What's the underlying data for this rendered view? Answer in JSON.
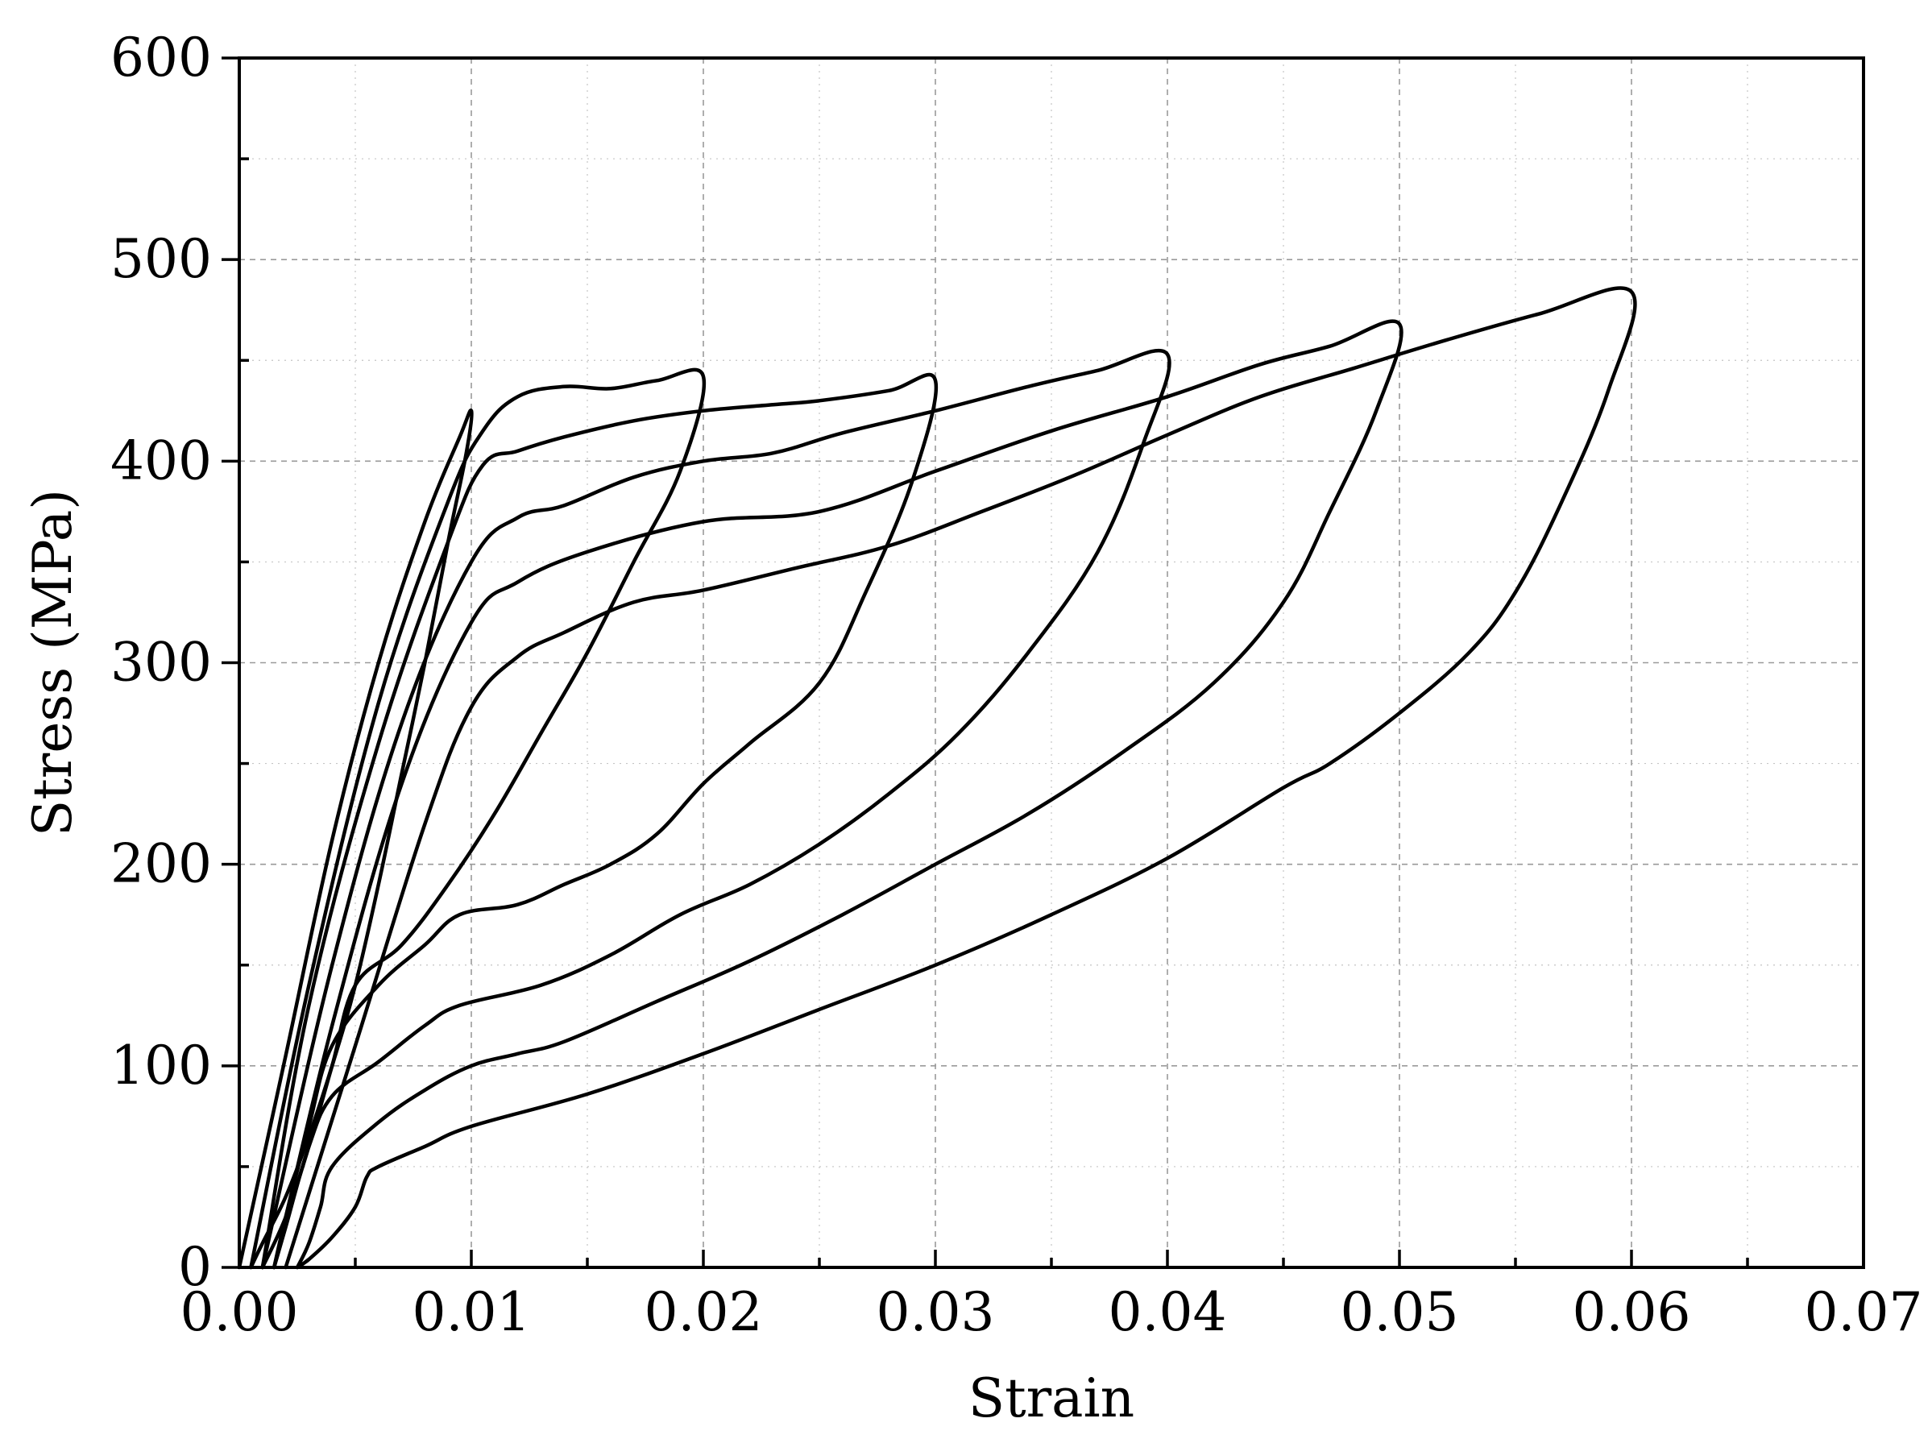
{
  "chart_data": {
    "type": "line",
    "xlabel": "Strain",
    "ylabel": "Stress (MPa)",
    "xlim": [
      0.0,
      0.07
    ],
    "ylim": [
      0,
      600
    ],
    "x_ticks": [
      "0.00",
      "0.01",
      "0.02",
      "0.03",
      "0.04",
      "0.05",
      "0.06",
      "0.07"
    ],
    "y_ticks": [
      "0",
      "100",
      "200",
      "300",
      "400",
      "500",
      "600"
    ],
    "x_minor_step": 0.005,
    "y_minor_step": 50,
    "grid": true,
    "series": [
      {
        "color": "#000000",
        "x": [
          0.0,
          0.002,
          0.004,
          0.006,
          0.008,
          0.0095,
          0.01,
          0.0098,
          0.009,
          0.008,
          0.007,
          0.006,
          0.005,
          0.004,
          0.003,
          0.002,
          0.001,
          0.0005
        ],
        "y": [
          0,
          105,
          212,
          300,
          370,
          412,
          425,
          405,
          360,
          300,
          245,
          190,
          140,
          100,
          65,
          35,
          12,
          0
        ]
      },
      {
        "color": "#000000",
        "x": [
          0.0005,
          0.003,
          0.006,
          0.009,
          0.0105,
          0.012,
          0.014,
          0.016,
          0.018,
          0.02,
          0.019,
          0.017,
          0.015,
          0.013,
          0.011,
          0.009,
          0.007,
          0.005,
          0.004,
          0.003,
          0.002,
          0.001
        ],
        "y": [
          0,
          140,
          280,
          380,
          415,
          432,
          437,
          436,
          440,
          442,
          395,
          350,
          305,
          265,
          225,
          190,
          160,
          140,
          100,
          60,
          25,
          0
        ]
      },
      {
        "color": "#000000",
        "x": [
          0.001,
          0.003,
          0.006,
          0.009,
          0.0105,
          0.012,
          0.014,
          0.017,
          0.02,
          0.023,
          0.025,
          0.028,
          0.03,
          0.029,
          0.027,
          0.025,
          0.022,
          0.02,
          0.018,
          0.016,
          0.014,
          0.012,
          0.0095,
          0.008,
          0.006,
          0.004,
          0.003,
          0.002,
          0.0015
        ],
        "y": [
          0,
          130,
          260,
          360,
          398,
          405,
          412,
          420,
          425,
          428,
          430,
          435,
          440,
          390,
          335,
          290,
          260,
          240,
          215,
          200,
          190,
          180,
          175,
          160,
          140,
          110,
          70,
          25,
          0
        ]
      },
      {
        "color": "#000000",
        "x": [
          0.001,
          0.004,
          0.007,
          0.01,
          0.012,
          0.014,
          0.017,
          0.02,
          0.023,
          0.026,
          0.03,
          0.034,
          0.037,
          0.04,
          0.039,
          0.037,
          0.034,
          0.031,
          0.028,
          0.025,
          0.022,
          0.019,
          0.016,
          0.013,
          0.0095,
          0.008,
          0.006,
          0.004,
          0.003,
          0.002,
          0.0015
        ],
        "y": [
          0,
          150,
          270,
          350,
          372,
          378,
          392,
          400,
          404,
          414,
          425,
          437,
          445,
          453,
          410,
          355,
          305,
          265,
          235,
          210,
          190,
          175,
          155,
          140,
          130,
          120,
          102,
          85,
          60,
          20,
          0
        ]
      },
      {
        "color": "#000000",
        "x": [
          0.0015,
          0.004,
          0.007,
          0.01,
          0.012,
          0.015,
          0.02,
          0.025,
          0.03,
          0.035,
          0.04,
          0.044,
          0.047,
          0.05,
          0.049,
          0.047,
          0.045,
          0.042,
          0.038,
          0.034,
          0.03,
          0.026,
          0.022,
          0.018,
          0.014,
          0.012,
          0.01,
          0.008,
          0.006,
          0.004,
          0.0035,
          0.003,
          0.0025
        ],
        "y": [
          0,
          120,
          240,
          320,
          340,
          355,
          370,
          375,
          395,
          415,
          432,
          448,
          457,
          468,
          425,
          375,
          330,
          290,
          255,
          225,
          200,
          175,
          152,
          132,
          112,
          106,
          100,
          88,
          72,
          50,
          30,
          12,
          0
        ]
      },
      {
        "color": "#000000",
        "x": [
          0.002,
          0.005,
          0.008,
          0.01,
          0.012,
          0.014,
          0.017,
          0.02,
          0.024,
          0.028,
          0.032,
          0.036,
          0.04,
          0.044,
          0.048,
          0.052,
          0.056,
          0.06,
          0.059,
          0.057,
          0.055,
          0.053,
          0.05,
          0.047,
          0.045,
          0.04,
          0.035,
          0.03,
          0.025,
          0.02,
          0.015,
          0.01,
          0.008,
          0.006,
          0.0055,
          0.005,
          0.004,
          0.003,
          0.0025
        ],
        "y": [
          0,
          110,
          220,
          278,
          303,
          315,
          330,
          336,
          347,
          358,
          375,
          393,
          413,
          432,
          446,
          460,
          473,
          484,
          435,
          380,
          335,
          305,
          275,
          250,
          238,
          203,
          175,
          150,
          128,
          106,
          86,
          70,
          60,
          50,
          45,
          30,
          15,
          4,
          0
        ]
      }
    ]
  }
}
